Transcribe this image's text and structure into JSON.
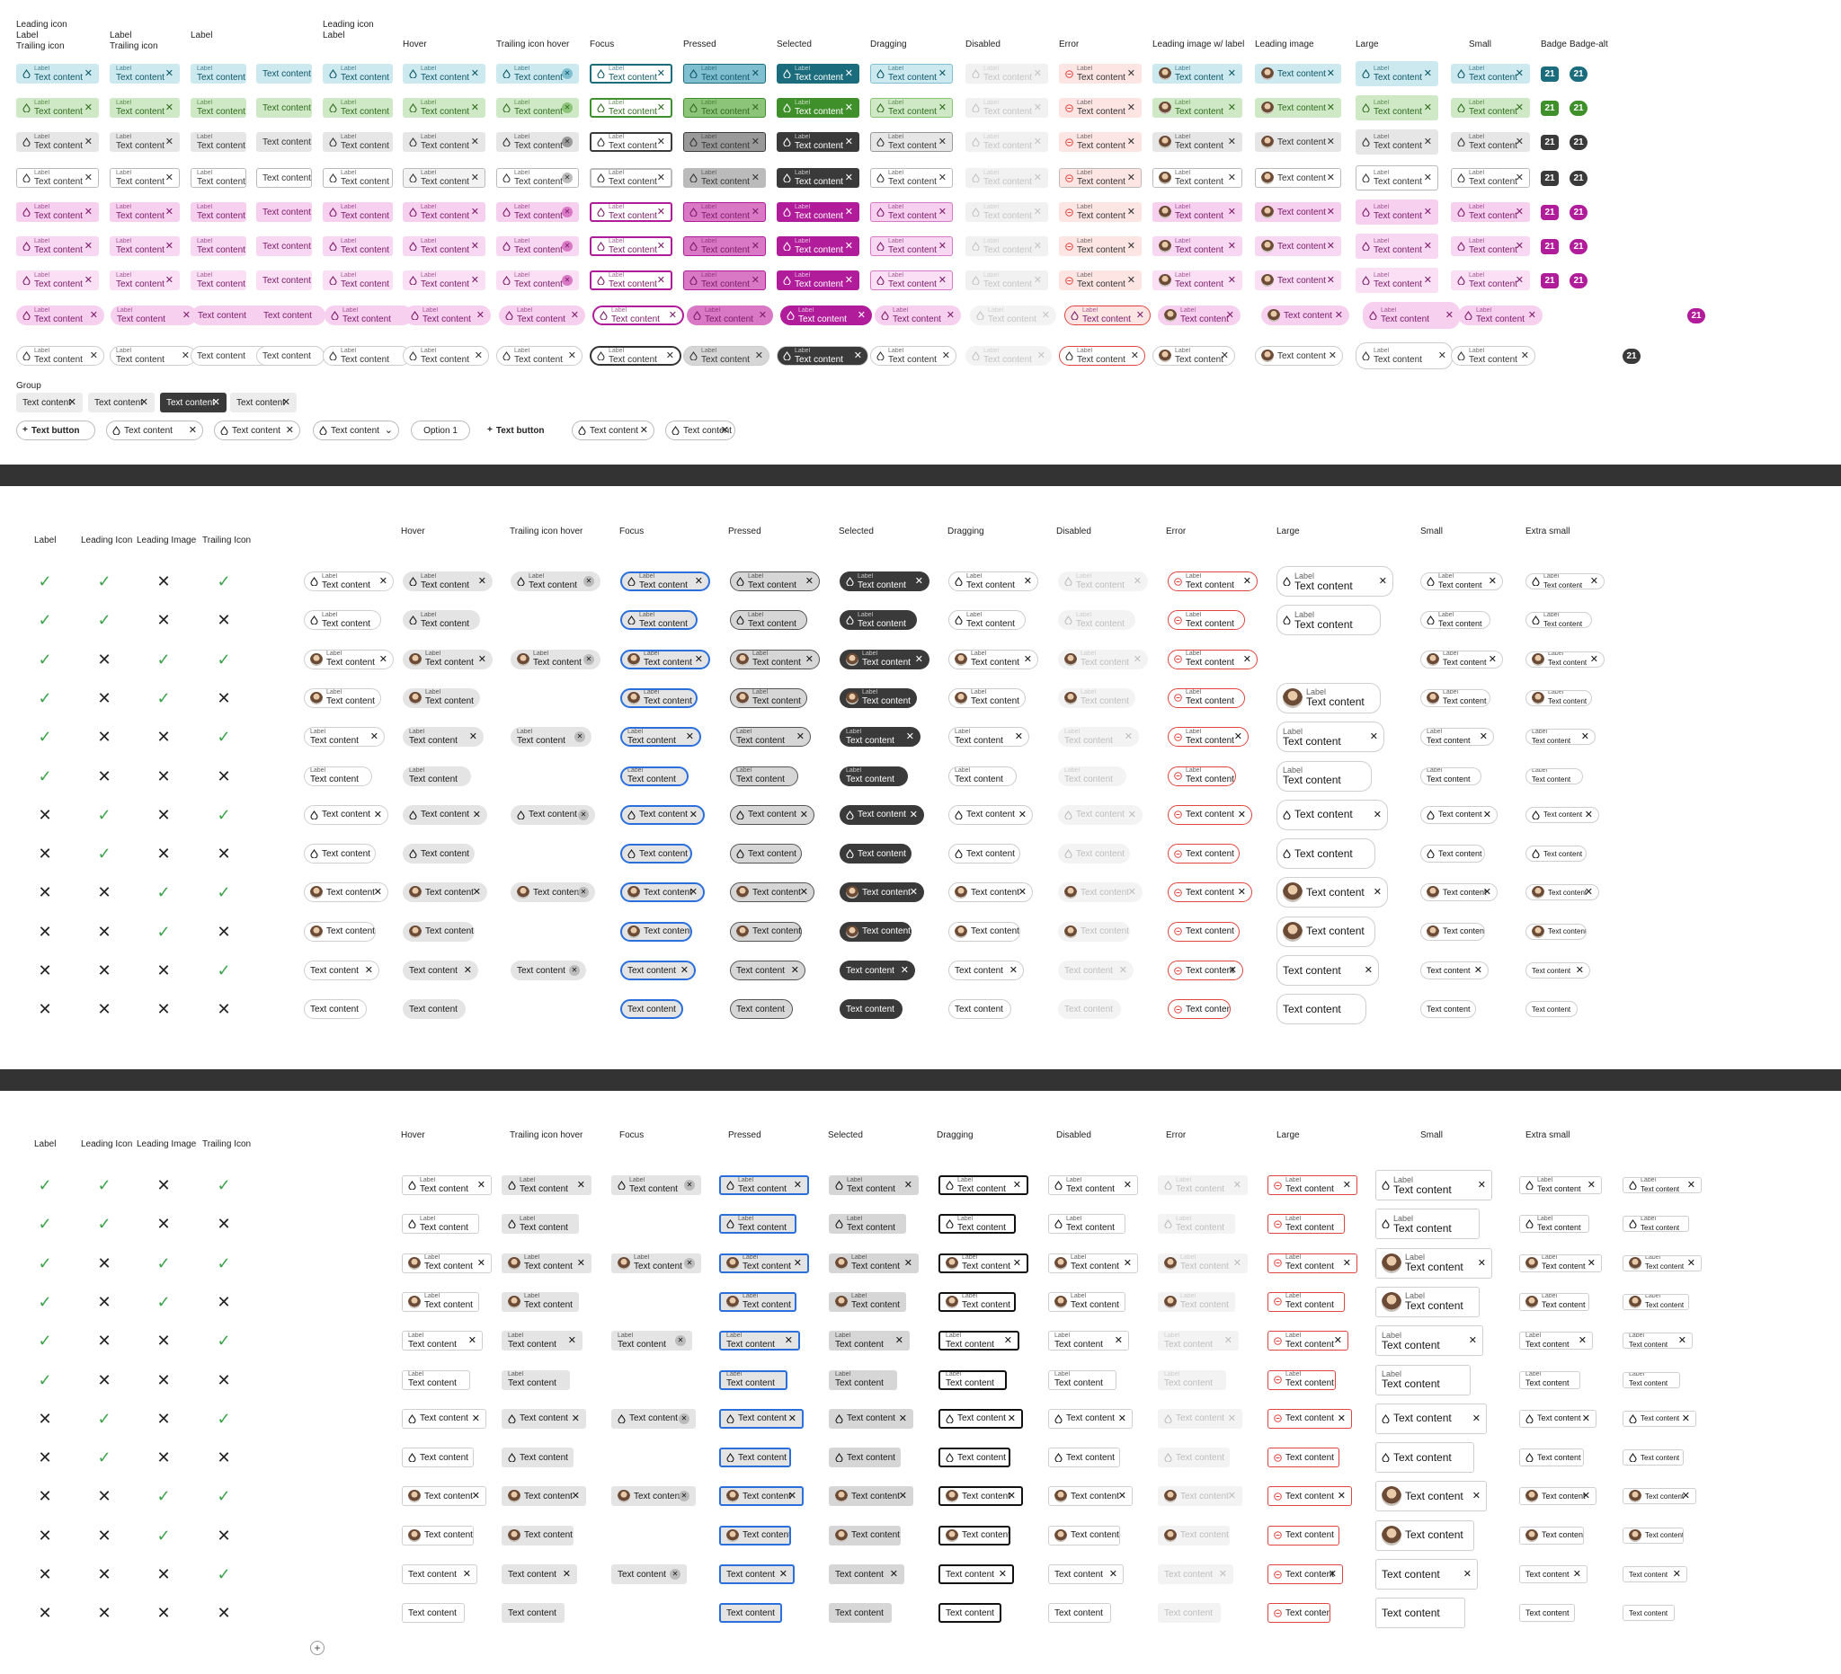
{
  "top": {
    "headers": [
      "Leading icon\nLabel\nTrailing icon",
      "Label\nTrailing icon",
      "Label",
      "",
      "Leading icon\nLabel",
      "Hover",
      "Trailing icon hover",
      "Focus",
      "Pressed",
      "Selected",
      "Dragging",
      "Disabled",
      "Error",
      "Leading image w/ label",
      "Leading image",
      "Large",
      "Small",
      "Badge",
      "Badge-alt"
    ],
    "label_text": "Label",
    "content_text": "Text content",
    "badge_value": "21",
    "group_title": "Group",
    "group_chips": [
      "Text content",
      "Text content",
      "Text content",
      "Text content"
    ],
    "bottom_row": [
      "Text button",
      "Text content",
      "Text content",
      "Text content",
      "Option 1",
      "Text button",
      "Text content",
      "Text content"
    ],
    "palettes": [
      {
        "bg": "#cde9f0",
        "fg": "#0b5565",
        "strong": "#1b6d7d",
        "border": "#7fbfcf"
      },
      {
        "bg": "#cfe8c6",
        "fg": "#2e6b1c",
        "strong": "#3f8f2b",
        "border": "#8cc47a"
      },
      {
        "bg": "#e6e6e6",
        "fg": "#333333",
        "strong": "#3a3a3a",
        "border": "#999999"
      },
      {
        "bg": "#ffffff",
        "fg": "#333333",
        "strong": "#3a3a3a",
        "border": "#bbbbbb"
      },
      {
        "bg": "#f7cfef",
        "fg": "#7a1a67",
        "strong": "#b11c9a",
        "border": "#d978c5"
      },
      {
        "bg": "#f7d7f1",
        "fg": "#7a1a67",
        "strong": "#b11c9a",
        "border": "#d978c5"
      },
      {
        "bg": "#fadff5",
        "fg": "#7a1a67",
        "strong": "#b11c9a",
        "border": "#d978c5"
      }
    ]
  },
  "grid": {
    "headers_left": [
      "Label",
      "Leading Icon",
      "Leading Image",
      "Trailing Icon"
    ],
    "headers_right": [
      "Hover",
      "Trailing icon hover",
      "Focus",
      "Pressed",
      "Selected",
      "Dragging",
      "Disabled",
      "Error",
      "Large",
      "Small",
      "Extra small"
    ],
    "rows": [
      {
        "label": true,
        "icon": true,
        "image": false,
        "trail": true
      },
      {
        "label": true,
        "icon": true,
        "image": false,
        "trail": false
      },
      {
        "label": true,
        "icon": false,
        "image": true,
        "trail": true
      },
      {
        "label": true,
        "icon": false,
        "image": true,
        "trail": false
      },
      {
        "label": true,
        "icon": false,
        "image": false,
        "trail": true
      },
      {
        "label": true,
        "icon": false,
        "image": false,
        "trail": false
      },
      {
        "label": false,
        "icon": true,
        "image": false,
        "trail": true
      },
      {
        "label": false,
        "icon": true,
        "image": false,
        "trail": false
      },
      {
        "label": false,
        "icon": false,
        "image": true,
        "trail": true
      },
      {
        "label": false,
        "icon": false,
        "image": true,
        "trail": false
      },
      {
        "label": false,
        "icon": false,
        "image": false,
        "trail": true
      },
      {
        "label": false,
        "icon": false,
        "image": false,
        "trail": false
      }
    ],
    "check_glyph": "✓",
    "cross_glyph": "✕",
    "colors": {
      "focus": "#2a6fdb",
      "error": "#e0443e",
      "selected": "#3a3a3a",
      "pressed": "#d6d6d6",
      "hover": "#e4e4e4",
      "disabled_text": "#bdbdbd",
      "border": "#cfcfcf"
    }
  },
  "add_glyph": "+"
}
